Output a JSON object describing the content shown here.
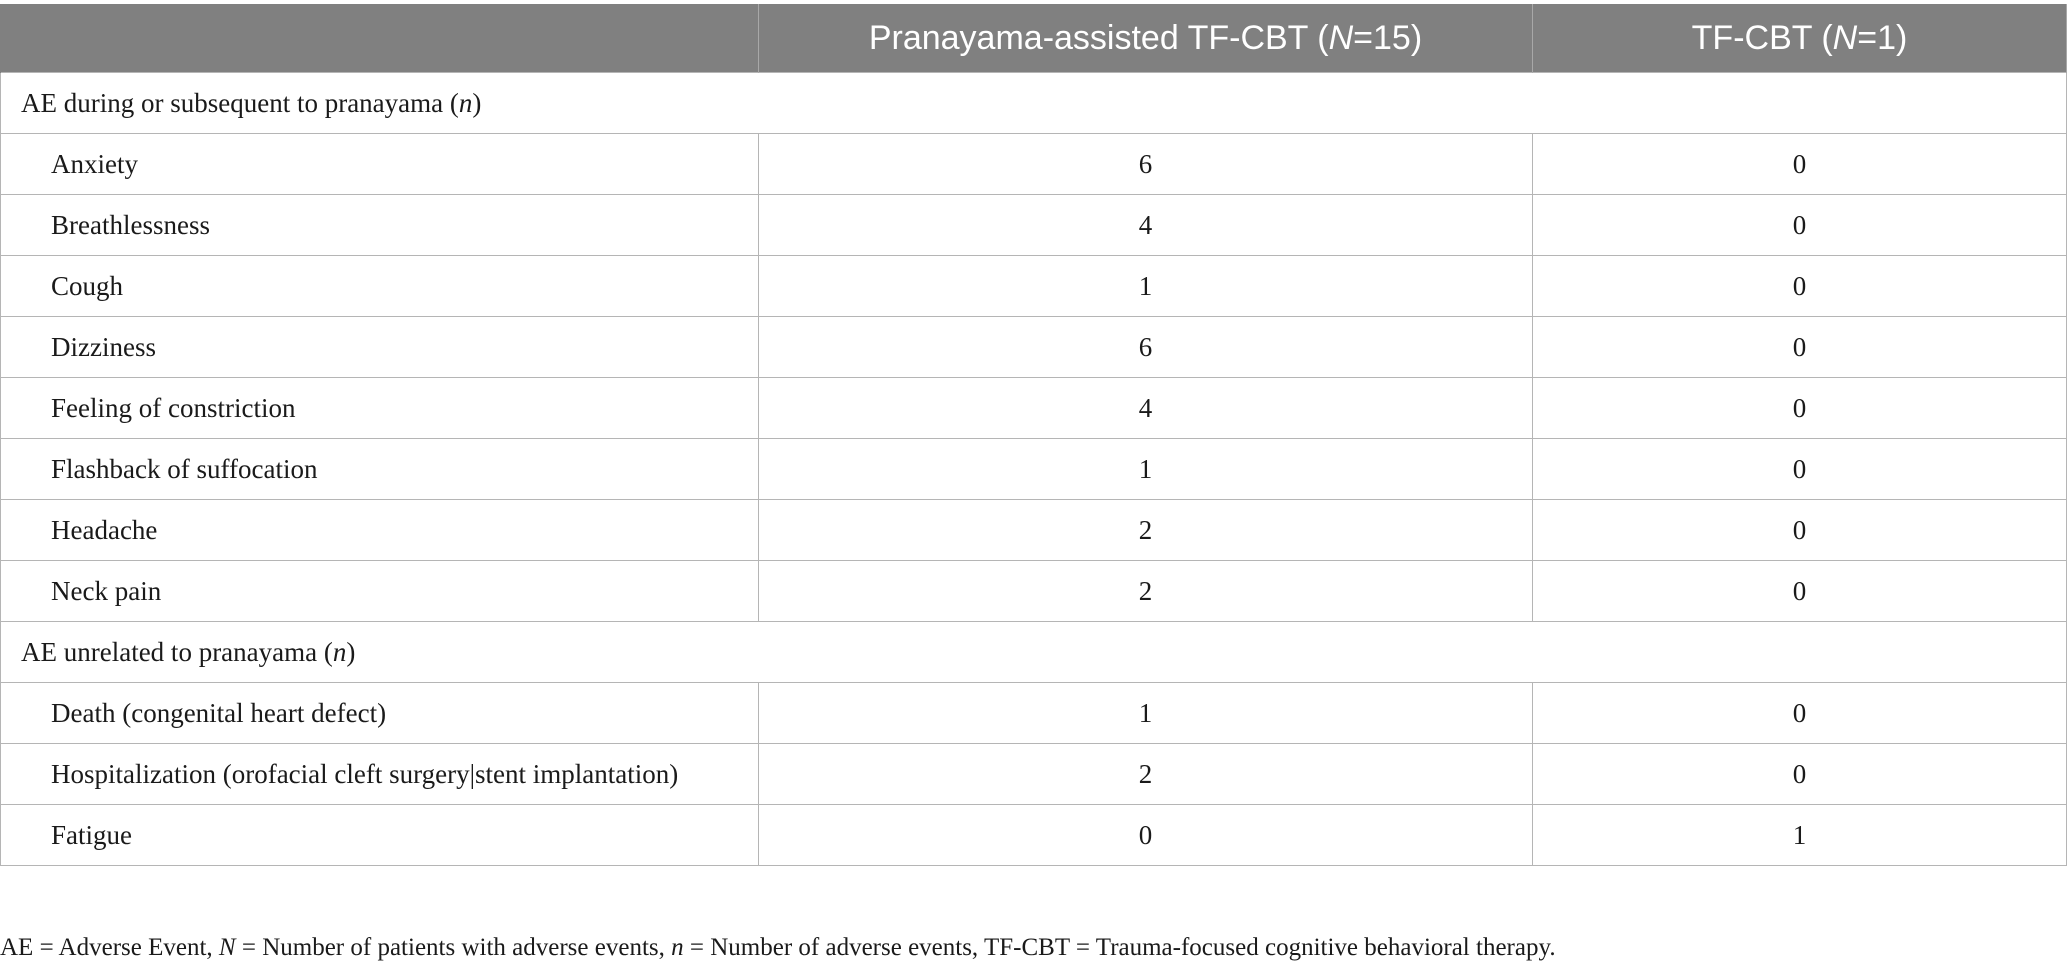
{
  "header": {
    "col1": "",
    "col2_prefix": "Pranayama-assisted TF-CBT (",
    "col2_var": "N",
    "col2_suffix": "=15)",
    "col3_prefix": "TF-CBT (",
    "col3_var": "N",
    "col3_suffix": "=1)"
  },
  "sections": [
    {
      "title_prefix": "AE during or subsequent to pranayama (",
      "title_var": "n",
      "title_suffix": ")",
      "rows": [
        {
          "label": "Anxiety",
          "pranayama": "6",
          "tfcbt": "0"
        },
        {
          "label": "Breathlessness",
          "pranayama": "4",
          "tfcbt": "0"
        },
        {
          "label": "Cough",
          "pranayama": "1",
          "tfcbt": "0"
        },
        {
          "label": "Dizziness",
          "pranayama": "6",
          "tfcbt": "0"
        },
        {
          "label": "Feeling of constriction",
          "pranayama": "4",
          "tfcbt": "0"
        },
        {
          "label": "Flashback of suffocation",
          "pranayama": "1",
          "tfcbt": "0"
        },
        {
          "label": "Headache",
          "pranayama": "2",
          "tfcbt": "0"
        },
        {
          "label": "Neck pain",
          "pranayama": "2",
          "tfcbt": "0"
        }
      ]
    },
    {
      "title_prefix": "AE unrelated to pranayama (",
      "title_var": "n",
      "title_suffix": ")",
      "rows": [
        {
          "label": "Death (congenital heart defect)",
          "pranayama": "1",
          "tfcbt": "0"
        },
        {
          "label": "Hospitalization (orofacial cleft surgery|stent implantation)",
          "pranayama": "2",
          "tfcbt": "0"
        },
        {
          "label": "Fatigue",
          "pranayama": "0",
          "tfcbt": "1"
        }
      ]
    }
  ],
  "footnote": {
    "p1": "AE = Adverse Event, ",
    "v1": "N",
    "p2": " = Number of patients with adverse events, ",
    "v2": "n",
    "p3": " = Number of adverse events, TF-CBT = Trauma-focused cognitive behavioral therapy."
  }
}
